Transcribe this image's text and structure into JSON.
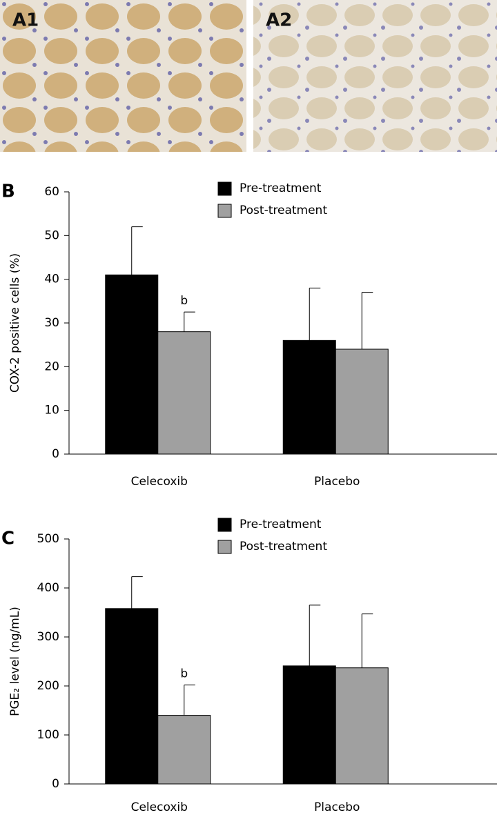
{
  "images": [
    {
      "label": "A1"
    },
    {
      "label": "A2"
    }
  ],
  "chart_data": [
    {
      "type": "bar",
      "panel_label": "B",
      "y_label": "COX-2 positive cells (%)",
      "categories": [
        "Celecoxib",
        "Placebo"
      ],
      "series": [
        {
          "name": "Pre-treatment",
          "color": "#000000",
          "values": [
            41,
            26
          ],
          "errors": [
            11,
            12
          ]
        },
        {
          "name": "Post-treatment",
          "color": "#a0a0a0",
          "values": [
            28,
            24
          ],
          "errors": [
            4.5,
            13
          ],
          "value_annotations": [
            "b",
            null
          ]
        }
      ],
      "ylim": [
        0,
        60
      ],
      "yticks": [
        0,
        10,
        20,
        30,
        40,
        50,
        60
      ],
      "legend": "top"
    },
    {
      "type": "bar",
      "panel_label": "C",
      "y_label": "PGE₂ level (ng/mL)",
      "categories": [
        "Celecoxib",
        "Placebo"
      ],
      "series": [
        {
          "name": "Pre-treatment",
          "color": "#000000",
          "values": [
            358,
            241
          ],
          "errors": [
            65,
            124
          ]
        },
        {
          "name": "Post-treatment",
          "color": "#a0a0a0",
          "values": [
            140,
            237
          ],
          "errors": [
            62,
            110
          ],
          "value_annotations": [
            "b",
            null
          ]
        }
      ],
      "ylim": [
        0,
        500
      ],
      "yticks": [
        0,
        100,
        200,
        300,
        400,
        500
      ],
      "legend": "top"
    }
  ]
}
